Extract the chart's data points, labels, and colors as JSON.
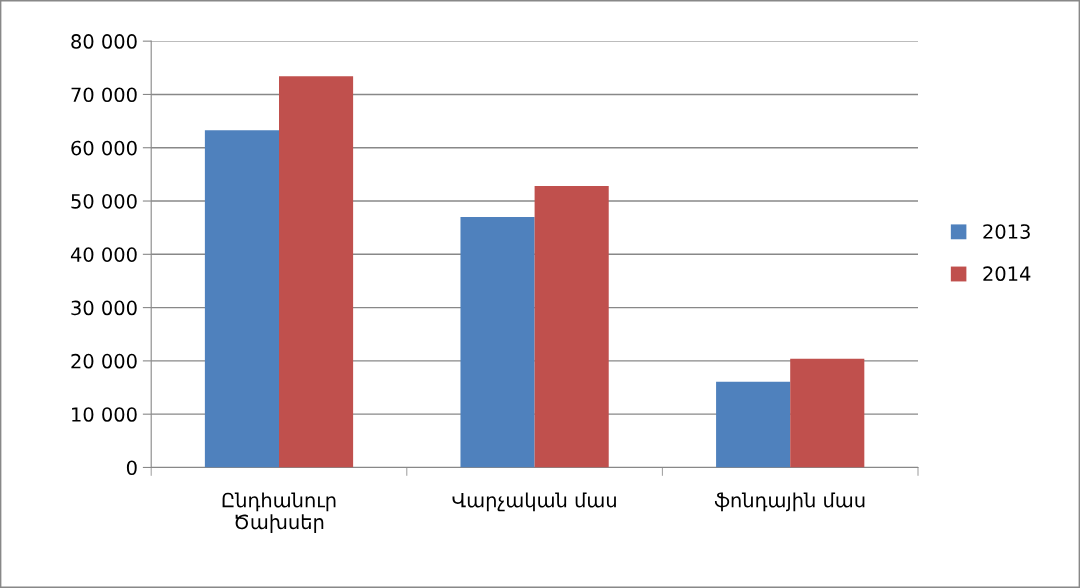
{
  "chart_data": {
    "type": "bar",
    "categories": [
      "Ընդհանուր\nԾախսեր",
      "Վարչական մաս",
      "ֆոնդային մաս"
    ],
    "series": [
      {
        "name": "2013",
        "color": "#4f81bd",
        "values": [
          63300,
          47000,
          16100
        ]
      },
      {
        "name": "2014",
        "color": "#c0504d",
        "values": [
          73400,
          52800,
          20400
        ]
      }
    ],
    "ylim": [
      0,
      80000
    ],
    "yticks": [
      {
        "value": 0,
        "label": "0"
      },
      {
        "value": 10000,
        "label": "10 000"
      },
      {
        "value": 20000,
        "label": "20 000"
      },
      {
        "value": 30000,
        "label": "30 000"
      },
      {
        "value": 40000,
        "label": "40 000"
      },
      {
        "value": 50000,
        "label": "50 000"
      },
      {
        "value": 60000,
        "label": "60 000"
      },
      {
        "value": 70000,
        "label": "70 000"
      },
      {
        "value": 80000,
        "label": "80 000"
      }
    ],
    "grid": "y",
    "legend": "right"
  }
}
